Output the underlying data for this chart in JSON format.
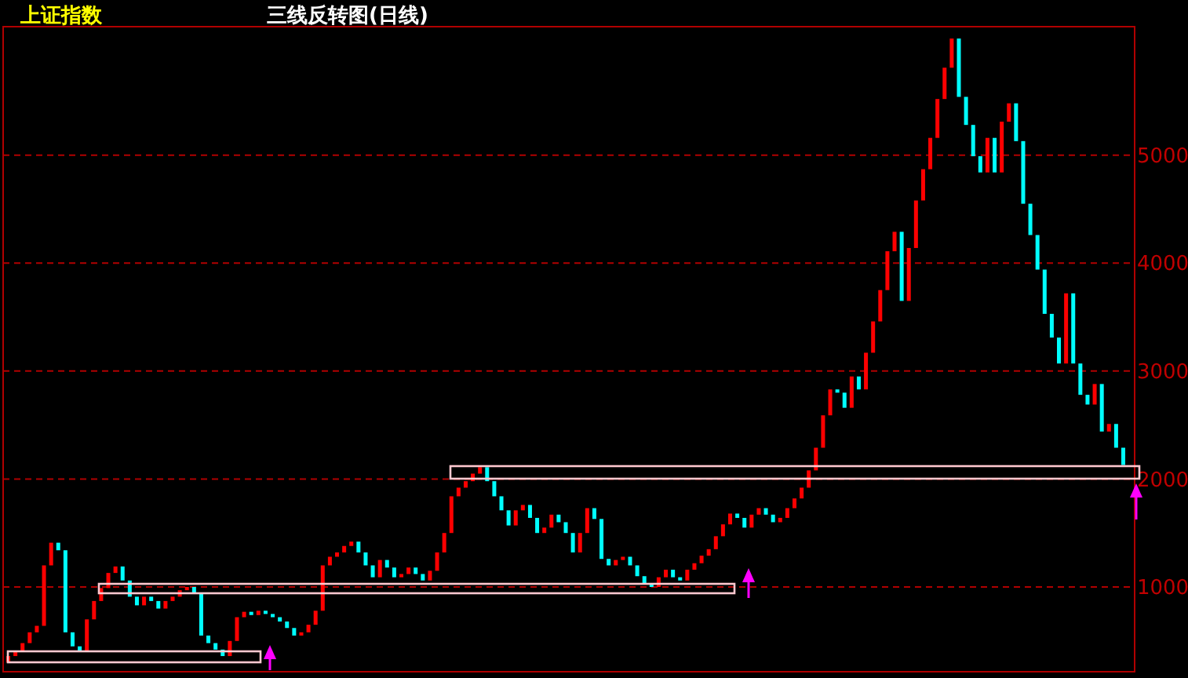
{
  "chart_data": {
    "type": "bar",
    "title": "三线反转图(日线)",
    "subtitle": "上证指数",
    "categories": [
      null,
      null,
      null,
      null,
      null,
      null,
      null,
      null,
      null,
      null,
      null,
      null,
      null,
      null,
      null,
      null,
      null,
      null,
      null,
      null,
      null,
      null,
      null,
      null,
      null,
      null,
      null,
      null,
      null,
      null,
      null,
      null,
      null,
      null,
      null,
      null,
      null,
      null,
      null,
      null,
      null,
      null,
      null,
      null,
      null,
      null,
      null,
      null,
      null,
      null,
      null,
      null,
      null,
      null,
      null,
      null,
      null,
      null,
      null,
      null,
      null,
      null,
      null,
      null,
      null,
      null,
      null,
      null,
      null,
      null,
      null,
      null,
      null,
      null,
      null,
      null,
      null,
      null,
      null,
      null,
      null,
      null,
      null,
      null,
      null,
      null,
      null,
      null,
      null,
      null,
      null,
      null,
      null,
      null,
      null,
      null,
      null,
      null,
      null,
      null,
      null,
      null,
      null,
      null,
      null,
      null,
      null,
      null,
      null,
      null,
      null,
      null,
      null,
      null,
      null,
      null,
      null,
      null,
      null,
      null,
      null,
      null,
      null,
      null,
      null,
      null,
      null,
      null,
      null,
      null,
      null,
      null,
      null,
      null,
      null,
      null,
      null,
      null,
      null,
      null,
      null,
      null,
      null,
      null,
      null,
      null,
      null,
      null,
      null,
      null,
      null,
      null,
      null,
      null,
      null,
      null,
      null
    ],
    "base": [
      300,
      360,
      400,
      480,
      580,
      640,
      1200,
      1410,
      1340,
      580,
      450,
      400,
      700,
      870,
      990,
      1130,
      1190,
      1060,
      910,
      830,
      910,
      870,
      800,
      870,
      910,
      970,
      1000,
      940,
      550,
      480,
      420,
      360,
      500,
      720,
      770,
      740,
      780,
      750,
      720,
      680,
      620,
      550,
      580,
      650,
      780,
      1200,
      1280,
      1320,
      1380,
      1420,
      1320,
      1200,
      1090,
      1250,
      1180,
      1090,
      1120,
      1180,
      1120,
      1060,
      1150,
      1320,
      1500,
      1840,
      1920,
      1980,
      2050,
      2110,
      1980,
      1840,
      1710,
      1570,
      1710,
      1760,
      1640,
      1500,
      1550,
      1670,
      1600,
      1500,
      1320,
      1500,
      1730,
      1630,
      1260,
      1200,
      1250,
      1280,
      1200,
      1100,
      1030,
      1000,
      1090,
      1160,
      1090,
      1060,
      1160,
      1220,
      1290,
      1350,
      1470,
      1580,
      1680,
      1640,
      1550,
      1670,
      1730,
      1670,
      1600,
      1640,
      1730,
      1820,
      1920,
      2080,
      2290,
      2590,
      2830,
      2800,
      2660,
      2950,
      2830,
      3170,
      3460,
      3750,
      4110,
      4290,
      3650,
      4140,
      4580,
      4870,
      5160,
      5520,
      5810,
      6080,
      5540,
      5280,
      4990,
      4840,
      5160,
      4840,
      5310,
      5480,
      5130,
      4550,
      4260,
      3940,
      3530,
      3310,
      3070,
      3720,
      3070,
      2780,
      2690,
      2880,
      2440,
      2510,
      2290
    ],
    "values": [
      60,
      40,
      80,
      100,
      60,
      560,
      210,
      -70,
      -760,
      -130,
      -50,
      300,
      170,
      120,
      140,
      60,
      -130,
      -150,
      -80,
      80,
      -40,
      -70,
      70,
      40,
      60,
      30,
      -60,
      -390,
      -70,
      -60,
      -60,
      140,
      220,
      50,
      -30,
      40,
      -30,
      -30,
      -40,
      -60,
      -70,
      30,
      70,
      130,
      420,
      80,
      40,
      60,
      40,
      -100,
      -120,
      -110,
      160,
      -70,
      -90,
      30,
      60,
      -60,
      -60,
      90,
      170,
      180,
      340,
      80,
      60,
      70,
      60,
      -130,
      -140,
      -130,
      -140,
      140,
      50,
      -120,
      -140,
      50,
      120,
      -70,
      -100,
      -180,
      180,
      230,
      -100,
      -370,
      -60,
      50,
      30,
      -80,
      -100,
      -70,
      -30,
      90,
      70,
      -70,
      -30,
      100,
      60,
      70,
      60,
      120,
      110,
      100,
      -40,
      -90,
      120,
      60,
      -60,
      -70,
      40,
      90,
      90,
      100,
      160,
      210,
      300,
      240,
      -30,
      -140,
      290,
      -120,
      340,
      290,
      290,
      360,
      180,
      -640,
      490,
      440,
      290,
      290,
      360,
      290,
      270,
      -540,
      -260,
      -290,
      -150,
      320,
      -320,
      470,
      170,
      -350,
      -580,
      -290,
      -320,
      -410,
      -220,
      -240,
      650,
      -650,
      -290,
      -90,
      190,
      -440,
      70,
      -220,
      -160
    ],
    "colors": [
      "#ff0000",
      "#ff0000",
      "#ff0000",
      "#ff0000",
      "#ff0000",
      "#ff0000",
      "#ff0000",
      "#00ffff",
      "#00ffff",
      "#00ffff",
      "#00ffff",
      "#ff0000",
      "#ff0000",
      "#ff0000",
      "#ff0000",
      "#ff0000",
      "#00ffff",
      "#00ffff",
      "#00ffff",
      "#ff0000",
      "#00ffff",
      "#00ffff",
      "#ff0000",
      "#ff0000",
      "#ff0000",
      "#ff0000",
      "#00ffff",
      "#00ffff",
      "#00ffff",
      "#00ffff",
      "#00ffff",
      "#ff0000",
      "#ff0000",
      "#ff0000",
      "#00ffff",
      "#ff0000",
      "#00ffff",
      "#00ffff",
      "#00ffff",
      "#00ffff",
      "#00ffff",
      "#ff0000",
      "#ff0000",
      "#ff0000",
      "#ff0000",
      "#ff0000",
      "#ff0000",
      "#ff0000",
      "#ff0000",
      "#00ffff",
      "#00ffff",
      "#00ffff",
      "#ff0000",
      "#00ffff",
      "#00ffff",
      "#ff0000",
      "#ff0000",
      "#00ffff",
      "#00ffff",
      "#ff0000",
      "#ff0000",
      "#ff0000",
      "#ff0000",
      "#ff0000",
      "#ff0000",
      "#ff0000",
      "#ff0000",
      "#00ffff",
      "#00ffff",
      "#00ffff",
      "#00ffff",
      "#ff0000",
      "#ff0000",
      "#00ffff",
      "#00ffff",
      "#ff0000",
      "#ff0000",
      "#00ffff",
      "#00ffff",
      "#00ffff",
      "#ff0000",
      "#ff0000",
      "#00ffff",
      "#00ffff",
      "#00ffff",
      "#ff0000",
      "#ff0000",
      "#00ffff",
      "#00ffff",
      "#00ffff",
      "#00ffff",
      "#ff0000",
      "#ff0000",
      "#00ffff",
      "#00ffff",
      "#ff0000",
      "#ff0000",
      "#ff0000",
      "#ff0000",
      "#ff0000",
      "#ff0000",
      "#ff0000",
      "#00ffff",
      "#00ffff",
      "#ff0000",
      "#ff0000",
      "#00ffff",
      "#00ffff",
      "#ff0000",
      "#ff0000",
      "#ff0000",
      "#ff0000",
      "#ff0000",
      "#ff0000",
      "#ff0000",
      "#ff0000",
      "#00ffff",
      "#00ffff",
      "#ff0000",
      "#00ffff",
      "#ff0000",
      "#ff0000",
      "#ff0000",
      "#ff0000",
      "#ff0000",
      "#00ffff",
      "#ff0000",
      "#ff0000",
      "#ff0000",
      "#ff0000",
      "#ff0000",
      "#ff0000",
      "#ff0000",
      "#00ffff",
      "#00ffff",
      "#00ffff",
      "#00ffff",
      "#ff0000",
      "#00ffff",
      "#ff0000",
      "#ff0000",
      "#00ffff",
      "#00ffff",
      "#00ffff",
      "#00ffff",
      "#00ffff",
      "#00ffff",
      "#00ffff",
      "#ff0000",
      "#00ffff",
      "#00ffff",
      "#00ffff",
      "#ff0000",
      "#00ffff",
      "#ff0000",
      "#00ffff",
      "#00ffff"
    ],
    "ylim": [
      215,
      6190
    ],
    "yticks": [
      1000,
      2000,
      3000,
      4000,
      5000
    ],
    "grid": "y"
  }
}
